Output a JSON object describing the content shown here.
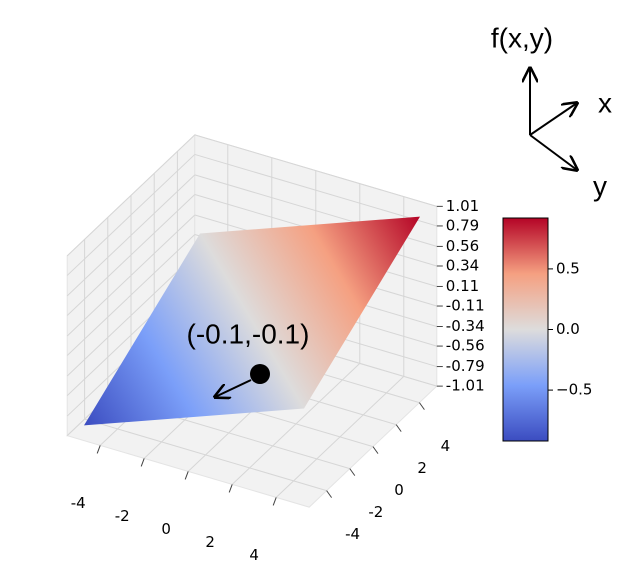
{
  "chart_data": {
    "type": "surface3d",
    "colormap": "coolwarm",
    "x": [
      -5,
      5
    ],
    "y": [
      -5,
      5
    ],
    "z": [
      [
        -0.92,
        0
      ],
      [
        0,
        0.92
      ]
    ],
    "xlim": [
      -5.5,
      5.5
    ],
    "ylim": [
      -5.5,
      5.5
    ],
    "zlim": [
      -1.01,
      1.01
    ],
    "xticks": [
      -4,
      -2,
      0,
      2,
      4
    ],
    "yticks": [
      -4,
      -2,
      0,
      2,
      4
    ],
    "zticks": [
      1.01,
      0.79,
      0.56,
      0.34,
      0.11,
      -0.11,
      -0.34,
      -0.56,
      -0.79,
      -1.01
    ],
    "grid": true,
    "colorbar": {
      "lim": [
        -0.92,
        0.92
      ],
      "ticks": [
        0.5,
        {
          "value": 0,
          "label": "0.0"
        },
        {
          "value": -0.5,
          "label": "−0.5"
        }
      ]
    },
    "annotation": "(-0.1,-0.1)",
    "axis_labels": {
      "z": "f(x,y)",
      "x": "x",
      "y": "y"
    }
  }
}
